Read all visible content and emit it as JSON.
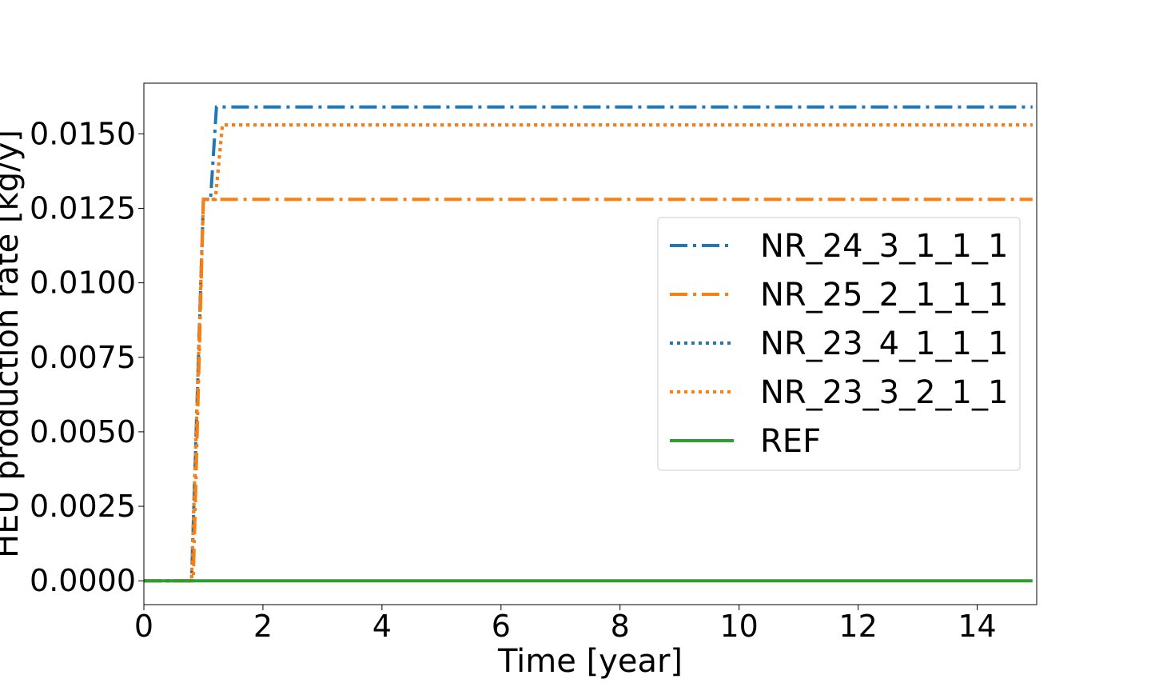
{
  "chart_data": {
    "type": "line",
    "title": "",
    "xlabel": "Time [year]",
    "ylabel": "HEU production rate [kg/y]",
    "xlim": [
      0,
      15
    ],
    "ylim": [
      -0.0008,
      0.0167
    ],
    "xticks": [
      0,
      2,
      4,
      6,
      8,
      10,
      12,
      14
    ],
    "xtick_labels": [
      "0",
      "2",
      "4",
      "6",
      "8",
      "10",
      "12",
      "14"
    ],
    "yticks": [
      0.0,
      0.0025,
      0.005,
      0.0075,
      0.01,
      0.0125,
      0.015
    ],
    "ytick_labels": [
      "0.0000",
      "0.0025",
      "0.0050",
      "0.0075",
      "0.0100",
      "0.0125",
      "0.0150"
    ],
    "grid": false,
    "legend_position": "center-right",
    "series": [
      {
        "name": "NR_24_3_1_1_1",
        "color": "#1f77b4",
        "style": "dashdot",
        "x": [
          0,
          0.8,
          1.0,
          1.12,
          1.22,
          14.93
        ],
        "y": [
          0,
          0,
          0.0128,
          0.0128,
          0.0159,
          0.0159
        ]
      },
      {
        "name": "NR_25_2_1_1_1",
        "color": "#ff7f0e",
        "style": "dashdot",
        "x": [
          0,
          0.83,
          1.0,
          14.93
        ],
        "y": [
          0,
          0,
          0.0128,
          0.0128
        ]
      },
      {
        "name": "NR_23_4_1_1_1",
        "color": "#1f77b4",
        "style": "dotted",
        "x": [
          0,
          0.8,
          1.0,
          1.2,
          1.32,
          14.93
        ],
        "y": [
          0,
          0,
          0.0128,
          0.0128,
          0.0153,
          0.0153
        ]
      },
      {
        "name": "NR_23_3_2_1_1",
        "color": "#ff7f0e",
        "style": "dotted",
        "x": [
          0,
          0.8,
          1.0,
          1.2,
          1.32,
          14.93
        ],
        "y": [
          0,
          0,
          0.0128,
          0.0128,
          0.0153,
          0.0153
        ]
      },
      {
        "name": "REF",
        "color": "#2ca02c",
        "style": "solid",
        "x": [
          0,
          14.93
        ],
        "y": [
          0,
          0
        ]
      }
    ]
  }
}
